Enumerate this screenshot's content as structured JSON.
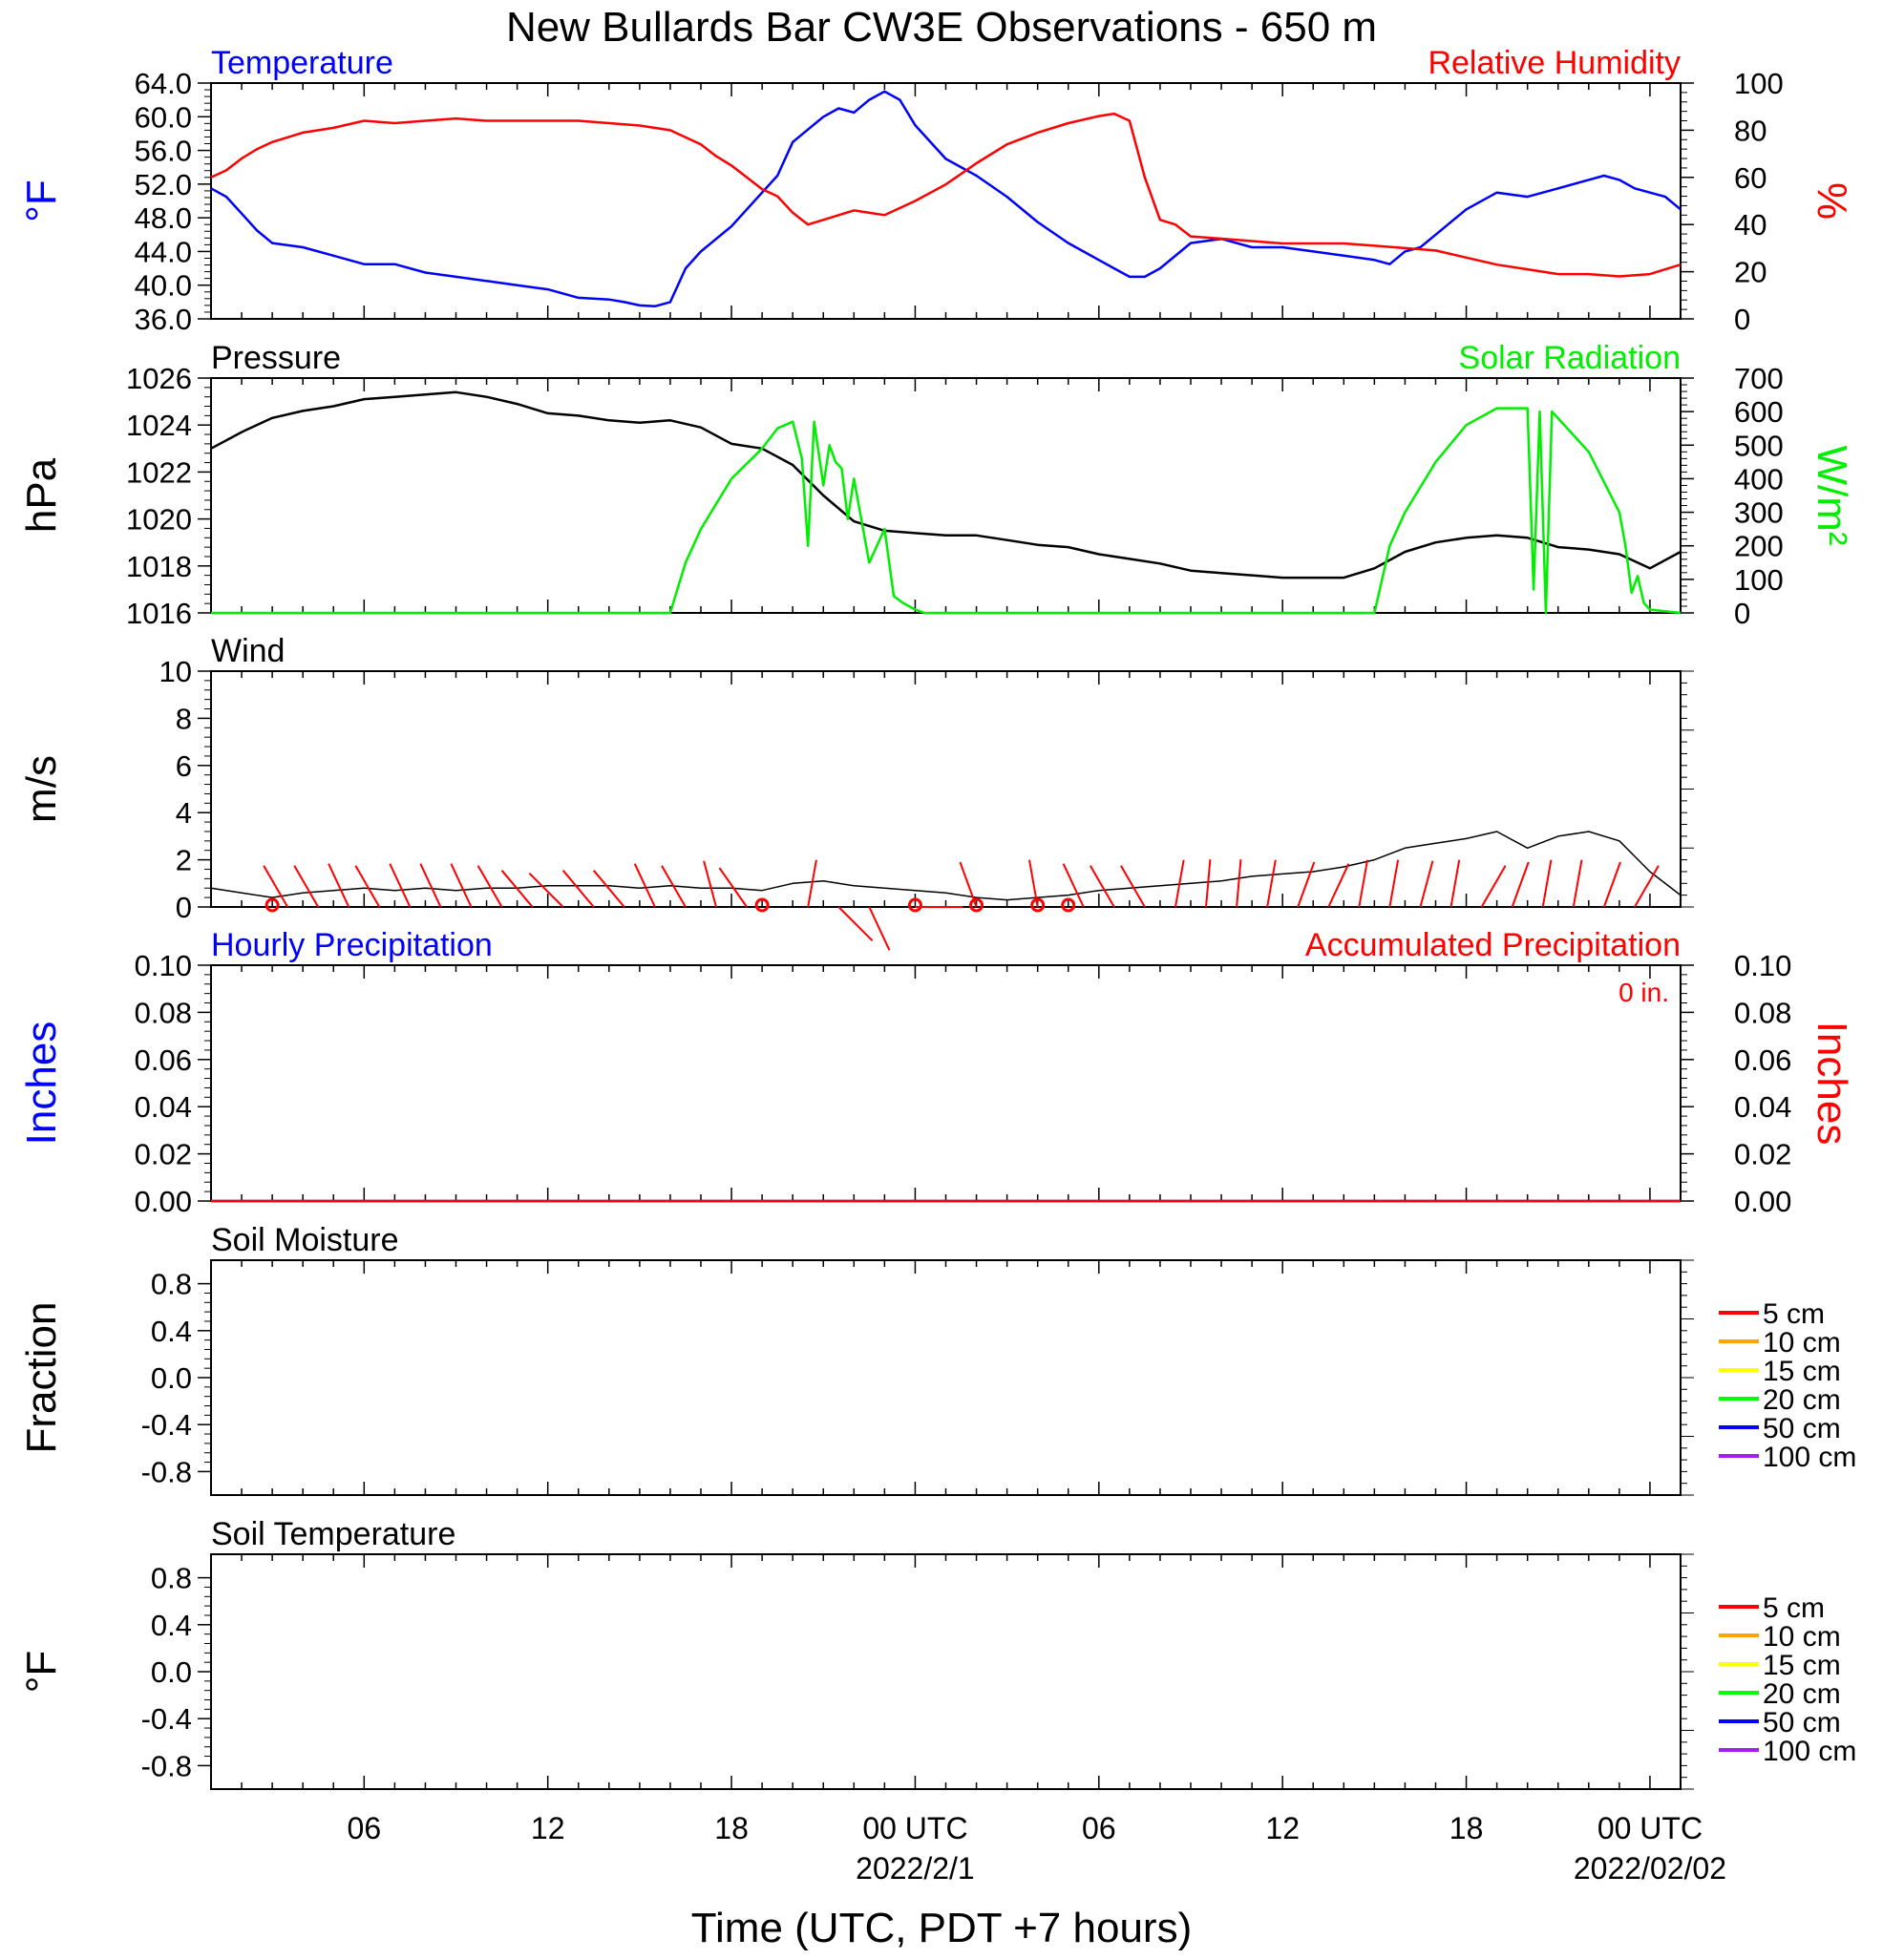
{
  "title": "New Bullards Bar CW3E Observations - 650 m",
  "colors": {
    "temperature": "#0000ff",
    "humidity": "#ff0000",
    "pressure": "#000000",
    "solar": "#00ee00",
    "wind": "#000000",
    "barb": "#ff0000",
    "precip_hourly": "#0000ff",
    "precip_accum": "#ff0000"
  },
  "x_axis": {
    "title": "Time (UTC, PDT +7 hours)",
    "range_hours": [
      0,
      48
    ],
    "ticks": [
      {
        "hour": 5,
        "label": "06",
        "sub": ""
      },
      {
        "hour": 11,
        "label": "12",
        "sub": ""
      },
      {
        "hour": 17,
        "label": "18",
        "sub": ""
      },
      {
        "hour": 23,
        "label": "00 UTC",
        "sub": "2022/2/1"
      },
      {
        "hour": 29,
        "label": "06",
        "sub": ""
      },
      {
        "hour": 35,
        "label": "12",
        "sub": ""
      },
      {
        "hour": 41,
        "label": "18",
        "sub": ""
      },
      {
        "hour": 47,
        "label": "00 UTC",
        "sub": "2022/02/02"
      }
    ]
  },
  "chart_data": [
    {
      "type": "line",
      "panel": "temperature-humidity",
      "title_left": "Temperature",
      "title_right": "Relative Humidity",
      "ylabel_left": "°F",
      "ylabel_right": "%",
      "ylim_left": [
        36,
        64
      ],
      "yticks_left": [
        "36.0",
        "40.0",
        "44.0",
        "48.0",
        "52.0",
        "56.0",
        "60.0",
        "64.0"
      ],
      "ylim_right": [
        0,
        100
      ],
      "yticks_right": [
        "0",
        "20",
        "40",
        "60",
        "80",
        "100"
      ],
      "series": [
        {
          "name": "Temperature",
          "axis": "left",
          "x_hours": [
            0,
            0.5,
            1,
            1.5,
            2,
            3,
            4,
            5,
            6,
            7,
            8,
            9,
            10,
            11,
            12,
            13,
            13.5,
            14,
            14.5,
            15,
            15.5,
            16,
            17,
            17.5,
            18,
            18.5,
            19,
            20,
            20.5,
            21,
            21.5,
            22,
            22.5,
            23,
            24,
            25,
            26,
            27,
            28,
            29,
            29.5,
            30,
            30.5,
            31,
            32,
            33,
            34,
            35,
            36,
            37,
            38,
            38.5,
            39,
            39.5,
            40,
            41,
            42,
            43,
            44,
            45,
            45.5,
            46,
            46.5,
            47,
            47.5,
            48
          ],
          "values": [
            51.5,
            50.5,
            48.5,
            46.5,
            45,
            44.5,
            43.5,
            42.5,
            42.5,
            41.5,
            41,
            40.5,
            40,
            39.5,
            38.5,
            38.3,
            38,
            37.6,
            37.5,
            38,
            42,
            44,
            47,
            49,
            51,
            53,
            57,
            60,
            61,
            60.5,
            62,
            63,
            62,
            59,
            55,
            53,
            50.5,
            47.5,
            45,
            43,
            42,
            41,
            41,
            42,
            45,
            45.5,
            44.5,
            44.5,
            44,
            43.5,
            43,
            42.5,
            44,
            44.5,
            46,
            49,
            51,
            50.5,
            51.5,
            52.5,
            53,
            52.5,
            51.5,
            51,
            50.5,
            49
          ]
        },
        {
          "name": "Relative Humidity",
          "axis": "right",
          "x_hours": [
            0,
            0.5,
            1,
            1.5,
            2,
            3,
            4,
            5,
            6,
            7,
            8,
            9,
            10,
            11,
            12,
            13,
            14,
            15,
            16,
            16.5,
            17,
            17.5,
            18,
            18.5,
            19,
            19.5,
            20,
            21,
            22,
            23,
            24,
            25,
            26,
            27,
            28,
            29,
            29.5,
            30,
            30.5,
            31,
            31.5,
            32,
            33,
            34,
            35,
            36,
            37,
            38,
            39,
            40,
            41,
            42,
            43,
            44,
            45,
            46,
            47,
            48
          ],
          "values": [
            60,
            63,
            68,
            72,
            75,
            79,
            81,
            84,
            83,
            84,
            85,
            84,
            84,
            84,
            84,
            83,
            82,
            80,
            74,
            69,
            65,
            60,
            55,
            52,
            45,
            40,
            42,
            46,
            44,
            50,
            57,
            66,
            74,
            79,
            83,
            86,
            87,
            84,
            60,
            42,
            40,
            35,
            34,
            33,
            32,
            32,
            32,
            31,
            30,
            29,
            26,
            23,
            21,
            19,
            19,
            18,
            19,
            23
          ]
        }
      ]
    },
    {
      "type": "line",
      "panel": "pressure-solar",
      "title_left": "Pressure",
      "title_right": "Solar Radiation",
      "ylabel_left": "hPa",
      "ylabel_right": "W/m²",
      "ylim_left": [
        1016,
        1026
      ],
      "yticks_left": [
        "1016",
        "1018",
        "1020",
        "1022",
        "1024",
        "1026"
      ],
      "ylim_right": [
        0,
        700
      ],
      "yticks_right": [
        "0",
        "100",
        "200",
        "300",
        "400",
        "500",
        "600",
        "700"
      ],
      "series": [
        {
          "name": "Pressure",
          "axis": "left",
          "x_hours": [
            0,
            1,
            2,
            3,
            4,
            5,
            6,
            7,
            8,
            9,
            10,
            11,
            12,
            13,
            14,
            15,
            16,
            17,
            18,
            19,
            20,
            21,
            22,
            23,
            24,
            25,
            26,
            27,
            28,
            29,
            30,
            31,
            32,
            33,
            34,
            35,
            36,
            37,
            38,
            39,
            40,
            41,
            42,
            43,
            44,
            45,
            46,
            47,
            48
          ],
          "values": [
            1023,
            1023.7,
            1024.3,
            1024.6,
            1024.8,
            1025.1,
            1025.2,
            1025.3,
            1025.4,
            1025.2,
            1024.9,
            1024.5,
            1024.4,
            1024.2,
            1024.1,
            1024.2,
            1023.9,
            1023.2,
            1023.0,
            1022.3,
            1021.0,
            1019.9,
            1019.5,
            1019.4,
            1019.3,
            1019.3,
            1019.1,
            1018.9,
            1018.8,
            1018.5,
            1018.3,
            1018.1,
            1017.8,
            1017.7,
            1017.6,
            1017.5,
            1017.5,
            1017.5,
            1017.9,
            1018.6,
            1019.0,
            1019.2,
            1019.3,
            1019.2,
            1018.8,
            1018.7,
            1018.5,
            1017.9,
            1018.6
          ]
        },
        {
          "name": "Solar Radiation",
          "axis": "right",
          "x_hours": [
            0,
            14,
            14.5,
            15,
            15.2,
            15.5,
            16,
            17,
            18,
            18.5,
            19,
            19.3,
            19.5,
            19.7,
            20,
            20.2,
            20.4,
            20.6,
            20.8,
            21,
            21.5,
            22,
            22.3,
            22.6,
            23,
            23.3,
            24,
            37,
            38,
            38.2,
            38.5,
            39,
            40,
            41,
            42,
            43,
            43.2,
            43.4,
            43.6,
            43.8,
            44,
            45,
            46,
            46.2,
            46.4,
            46.6,
            46.8,
            47,
            47.5,
            48
          ],
          "values": [
            0,
            0,
            0,
            0,
            60,
            150,
            250,
            400,
            490,
            550,
            570,
            460,
            200,
            570,
            380,
            500,
            450,
            430,
            280,
            400,
            150,
            250,
            50,
            30,
            10,
            0,
            0,
            0,
            0,
            80,
            200,
            300,
            450,
            560,
            610,
            610,
            70,
            600,
            0,
            600,
            580,
            480,
            300,
            200,
            60,
            110,
            30,
            10,
            5,
            0
          ]
        }
      ]
    },
    {
      "type": "line",
      "panel": "wind",
      "title_left": "Wind",
      "ylabel_left": "m/s",
      "ylim_left": [
        0,
        10
      ],
      "yticks_left": [
        "0",
        "2",
        "4",
        "6",
        "8",
        "10"
      ],
      "series": [
        {
          "name": "Wind",
          "axis": "left",
          "x_hours": [
            0,
            1,
            2,
            3,
            4,
            5,
            6,
            7,
            8,
            9,
            10,
            11,
            12,
            13,
            14,
            15,
            16,
            17,
            18,
            19,
            20,
            21,
            22,
            23,
            24,
            25,
            26,
            27,
            28,
            29,
            30,
            31,
            32,
            33,
            34,
            35,
            36,
            37,
            38,
            39,
            40,
            41,
            42,
            43,
            44,
            45,
            46,
            47,
            48
          ],
          "values": [
            0.8,
            0.6,
            0.4,
            0.6,
            0.7,
            0.8,
            0.7,
            0.8,
            0.7,
            0.8,
            0.8,
            0.9,
            0.9,
            0.9,
            0.8,
            0.9,
            0.8,
            0.8,
            0.7,
            1.0,
            1.1,
            0.9,
            0.8,
            0.7,
            0.6,
            0.4,
            0.3,
            0.4,
            0.5,
            0.7,
            0.8,
            0.9,
            1.0,
            1.1,
            1.3,
            1.4,
            1.5,
            1.7,
            2.0,
            2.5,
            2.7,
            2.9,
            3.2,
            2.5,
            3.0,
            3.2,
            2.8,
            1.5,
            0.5
          ]
        }
      ],
      "barb_hours": [
        2.5,
        3.5,
        4.5,
        5.5,
        6.5,
        7.5,
        8.5,
        9.5,
        10.5,
        11.5,
        12.5,
        13.5,
        14.5,
        15.5,
        16.5,
        17.5,
        19.5,
        20.5,
        21.5,
        23,
        25,
        27,
        28.5,
        29.5,
        30.5,
        31.5,
        32.5,
        33.5,
        34.5,
        35.5,
        36.5,
        37.5,
        38.5,
        39.5,
        40.5,
        41.5,
        42.5,
        43.5,
        44.5,
        45.5,
        46.5
      ],
      "barb_directions_deg": [
        330,
        330,
        335,
        330,
        335,
        335,
        335,
        330,
        320,
        315,
        320,
        320,
        335,
        330,
        345,
        325,
        10,
        135,
        155,
        90,
        340,
        350,
        335,
        330,
        330,
        10,
        5,
        5,
        10,
        20,
        25,
        10,
        10,
        15,
        10,
        30,
        20,
        10,
        10,
        20,
        30
      ],
      "calm_hours": [
        2.0,
        18.0,
        23.0,
        25.0,
        27.0,
        28.0
      ]
    },
    {
      "type": "line",
      "panel": "precipitation",
      "title_left": "Hourly Precipitation",
      "title_right": "Accumulated Precipitation",
      "annotation": "0 in.",
      "ylabel_left": "Inches",
      "ylabel_right": "Inches",
      "ylim_left": [
        0,
        0.1
      ],
      "ylim_right": [
        0,
        0.1
      ],
      "yticks_left": [
        "0.00",
        "0.02",
        "0.04",
        "0.06",
        "0.08",
        "0.10"
      ],
      "yticks_right": [
        "0.00",
        "0.02",
        "0.04",
        "0.06",
        "0.08",
        "0.10"
      ],
      "series": [
        {
          "name": "Hourly Precipitation",
          "axis": "left",
          "x_hours": [
            0,
            48
          ],
          "values": [
            0,
            0
          ]
        },
        {
          "name": "Accumulated Precipitation",
          "axis": "right",
          "x_hours": [
            0,
            48
          ],
          "values": [
            0,
            0
          ]
        }
      ]
    },
    {
      "type": "line",
      "panel": "soil-moisture",
      "title_left": "Soil Moisture",
      "ylabel_left": "Fraction",
      "ylim_left": [
        -1,
        1
      ],
      "yticks_left": [
        "-0.8",
        "-0.4",
        "0.0",
        "0.4",
        "0.8"
      ],
      "legend": [
        {
          "label": "5 cm",
          "color": "#ff0000"
        },
        {
          "label": "10 cm",
          "color": "#ffa500"
        },
        {
          "label": "15 cm",
          "color": "#ffff00"
        },
        {
          "label": "20 cm",
          "color": "#00ff00"
        },
        {
          "label": "50 cm",
          "color": "#0000ff"
        },
        {
          "label": "100 cm",
          "color": "#a020f0"
        }
      ],
      "series": []
    },
    {
      "type": "line",
      "panel": "soil-temperature",
      "title_left": "Soil Temperature",
      "ylabel_left": "°F",
      "ylim_left": [
        -1,
        1
      ],
      "yticks_left": [
        "-0.8",
        "-0.4",
        "0.0",
        "0.4",
        "0.8"
      ],
      "legend": [
        {
          "label": "5 cm",
          "color": "#ff0000"
        },
        {
          "label": "10 cm",
          "color": "#ffa500"
        },
        {
          "label": "15 cm",
          "color": "#ffff00"
        },
        {
          "label": "20 cm",
          "color": "#00ff00"
        },
        {
          "label": "50 cm",
          "color": "#0000ff"
        },
        {
          "label": "100 cm",
          "color": "#a020f0"
        }
      ],
      "series": []
    }
  ]
}
